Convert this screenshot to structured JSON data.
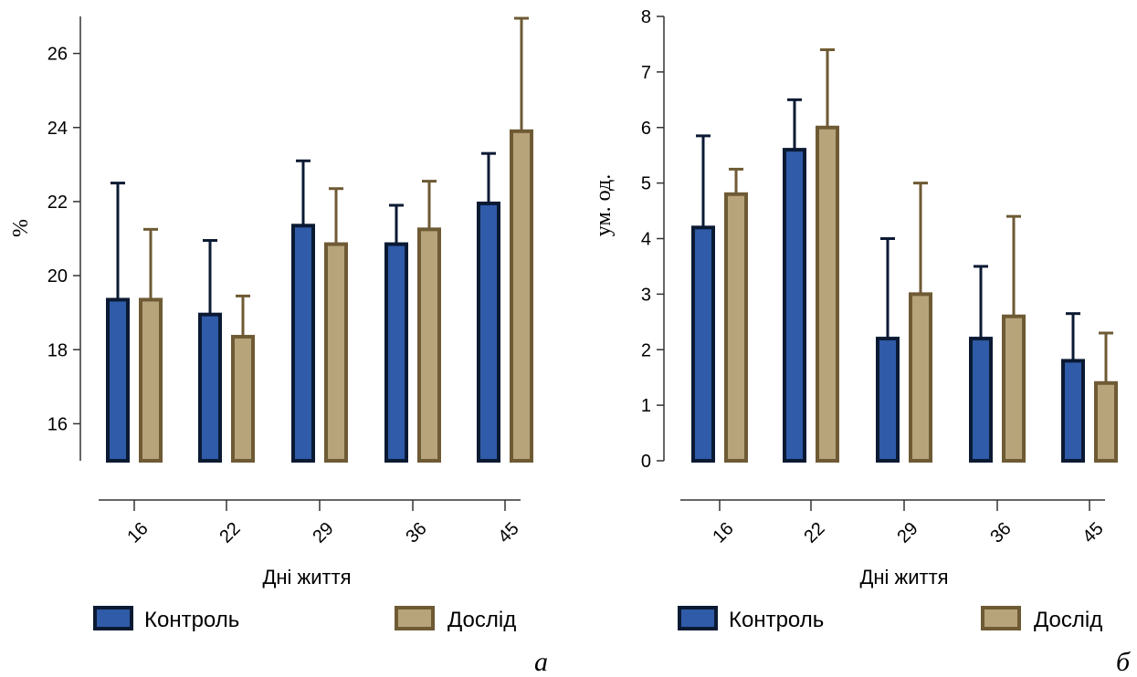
{
  "colors": {
    "control_fill": "#2f5ba8",
    "control_stroke": "#0b1a33",
    "experiment_fill": "#b8a47a",
    "experiment_stroke": "#6e5a34"
  },
  "legend": {
    "control": "Контроль",
    "experiment": "Дослід"
  },
  "chart_data": [
    {
      "type": "bar",
      "panel_label": "а",
      "categories": [
        "16",
        "22",
        "29",
        "36",
        "45"
      ],
      "xlabel": "Дні життя",
      "ylabel": "%",
      "ylim": [
        15,
        27
      ],
      "yticks": [
        16,
        18,
        20,
        22,
        24,
        26
      ],
      "series": [
        {
          "name": "Контроль",
          "values": [
            19.35,
            18.95,
            21.35,
            20.85,
            21.95
          ],
          "errors": [
            3.15,
            2.0,
            1.75,
            1.05,
            1.35
          ]
        },
        {
          "name": "Дослід",
          "values": [
            19.35,
            18.35,
            20.85,
            21.25,
            23.9
          ],
          "errors": [
            1.9,
            1.1,
            1.5,
            1.3,
            3.05
          ]
        }
      ],
      "legend_position": "bottom"
    },
    {
      "type": "bar",
      "panel_label": "б",
      "categories": [
        "16",
        "22",
        "29",
        "36",
        "45"
      ],
      "xlabel": "Дні життя",
      "ylabel": "ум. од.",
      "ylim": [
        0,
        8
      ],
      "yticks": [
        0,
        1,
        2,
        3,
        4,
        5,
        6,
        7,
        8
      ],
      "series": [
        {
          "name": "Контроль",
          "values": [
            4.2,
            5.6,
            2.2,
            2.2,
            1.8
          ],
          "errors": [
            1.65,
            0.9,
            1.8,
            1.3,
            0.85
          ]
        },
        {
          "name": "Дослід",
          "values": [
            4.8,
            6.0,
            3.0,
            2.6,
            1.4
          ],
          "errors": [
            0.45,
            1.4,
            2.0,
            1.8,
            0.9
          ]
        }
      ],
      "legend_position": "bottom"
    }
  ]
}
